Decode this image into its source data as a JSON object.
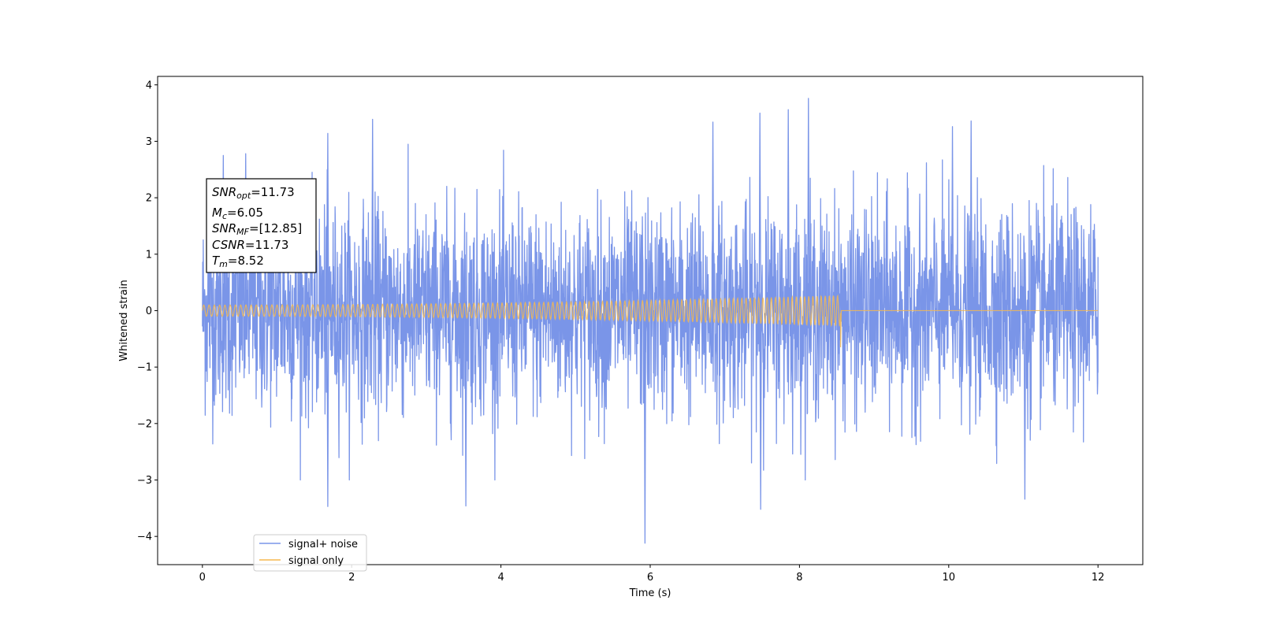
{
  "chart_data": {
    "type": "line",
    "xlabel": "Time (s)",
    "ylabel": "Whitened strain",
    "xlim": [
      -0.6,
      12.6
    ],
    "ylim": [
      -4.5,
      4.15
    ],
    "xticks": [
      0,
      2,
      4,
      6,
      8,
      10,
      12
    ],
    "yticks": [
      -4,
      -3,
      -2,
      -1,
      0,
      1,
      2,
      3,
      4
    ],
    "grid": false,
    "legend_position": "lower-left",
    "series": [
      {
        "name": "signal+ noise",
        "color": "#7a95e8",
        "description_values": {
          "t_start": 0,
          "t_end": 12,
          "noise_std": 0.9,
          "max": 3.76,
          "min": -4.12,
          "peaks": [
            [
              0.28,
              2.75
            ],
            [
              0.58,
              2.78
            ],
            [
              1.68,
              3.14
            ],
            [
              2.28,
              3.39
            ],
            [
              6.84,
              3.34
            ],
            [
              7.47,
              3.5
            ],
            [
              7.85,
              3.56
            ],
            [
              8.12,
              3.76
            ],
            [
              10.05,
              3.26
            ],
            [
              10.3,
              3.36
            ],
            [
              5.93,
              -4.12
            ],
            [
              1.68,
              -3.47
            ],
            [
              3.53,
              -3.46
            ],
            [
              7.48,
              -3.52
            ],
            [
              11.02,
              -3.34
            ]
          ]
        }
      },
      {
        "name": "signal only",
        "color": "#f5b84f",
        "description_values": {
          "t_start": 0,
          "t_end": 12,
          "t_merger": 8.55,
          "amplitude_start": 0.1,
          "amplitude_end": 0.27,
          "min_at_merger": -0.65
        }
      }
    ],
    "annotation": {
      "lines": [
        {
          "var": "SNR",
          "sub": "opt",
          "text": "=11.73"
        },
        {
          "var": "M",
          "sub": "c",
          "text": "=6.05"
        },
        {
          "var": "SNR",
          "sub": "MF",
          "text": "=[12.85]"
        },
        {
          "var": "CSNR",
          "sub": "",
          "text": "=11.73"
        },
        {
          "var": "T",
          "sub": "m",
          "text": "=8.52"
        }
      ]
    }
  }
}
